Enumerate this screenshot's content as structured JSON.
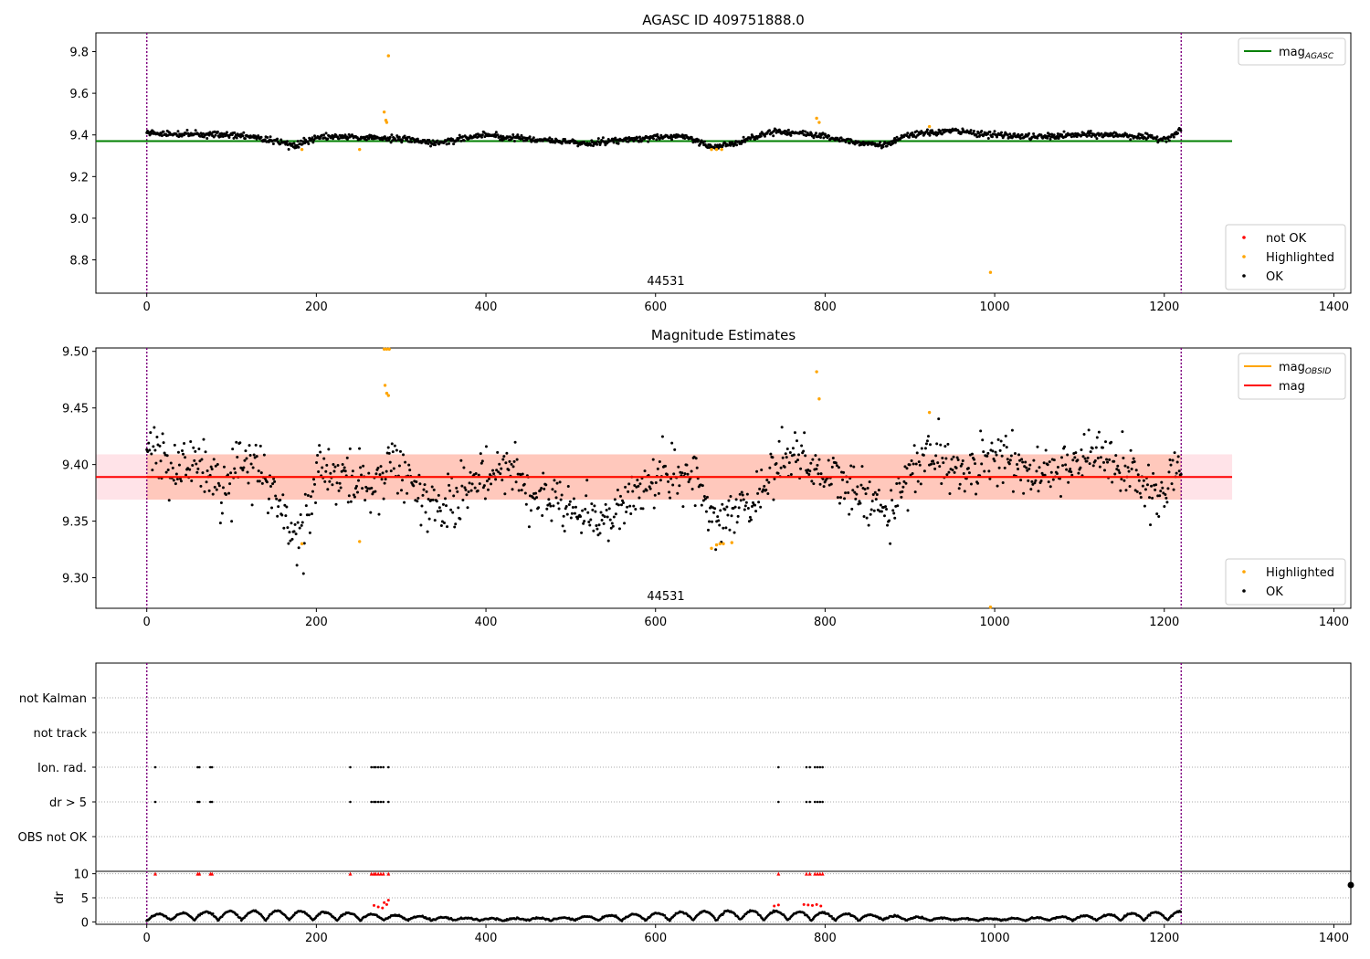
{
  "chart_data": [
    {
      "type": "scatter",
      "title": "AGASC ID 409751888.0",
      "xlim": [
        -60,
        1420
      ],
      "ylim": [
        8.64,
        9.89
      ],
      "xticks": [
        0,
        200,
        400,
        600,
        800,
        1000,
        1200,
        1400
      ],
      "yticks": [
        8.8,
        9.0,
        9.2,
        9.4,
        9.6,
        9.8
      ],
      "obsid_label": "44531",
      "obsid_boundaries": [
        0,
        1220
      ],
      "reference_line": {
        "name": "mag",
        "subscript": "AGASC",
        "value": 9.37,
        "x_range": [
          -60,
          1280
        ],
        "color": "#008000"
      },
      "legend_top": {
        "position": "upper right",
        "entries": [
          {
            "label": "mag",
            "sub": "AGASC",
            "color": "#008000",
            "marker": "line"
          }
        ]
      },
      "legend_bottom": {
        "position": "lower right",
        "entries": [
          {
            "label": "not OK",
            "color": "#ff0000",
            "marker": "dot"
          },
          {
            "label": "Highlighted",
            "color": "#ffa500",
            "marker": "dot"
          },
          {
            "label": "OK",
            "color": "#000000",
            "marker": "dot"
          }
        ]
      },
      "series": [
        {
          "name": "OK",
          "color": "#000000",
          "trend": [
            [
              0,
              9.41
            ],
            [
              60,
              9.4
            ],
            [
              100,
              9.4
            ],
            [
              130,
              9.39
            ],
            [
              150,
              9.37
            ],
            [
              175,
              9.35
            ],
            [
              200,
              9.39
            ],
            [
              250,
              9.39
            ],
            [
              300,
              9.38
            ],
            [
              340,
              9.36
            ],
            [
              400,
              9.4
            ],
            [
              450,
              9.38
            ],
            [
              520,
              9.36
            ],
            [
              600,
              9.39
            ],
            [
              640,
              9.39
            ],
            [
              665,
              9.34
            ],
            [
              700,
              9.37
            ],
            [
              740,
              9.42
            ],
            [
              790,
              9.4
            ],
            [
              830,
              9.37
            ],
            [
              870,
              9.35
            ],
            [
              900,
              9.4
            ],
            [
              950,
              9.42
            ],
            [
              1000,
              9.4
            ],
            [
              1050,
              9.39
            ],
            [
              1100,
              9.4
            ],
            [
              1150,
              9.4
            ],
            [
              1200,
              9.38
            ],
            [
              1220,
              9.42
            ]
          ],
          "scatter": 0.012
        },
        {
          "name": "Highlighted",
          "color": "#ffa500",
          "points": [
            [
              183,
              9.33
            ],
            [
              251,
              9.33
            ],
            [
              280,
              9.51
            ],
            [
              282,
              9.47
            ],
            [
              283,
              9.46
            ],
            [
              285,
              9.78
            ],
            [
              666,
              9.33
            ],
            [
              672,
              9.33
            ],
            [
              678,
              9.33
            ],
            [
              790,
              9.48
            ],
            [
              793,
              9.46
            ],
            [
              923,
              9.44
            ],
            [
              995,
              8.74
            ]
          ]
        }
      ]
    },
    {
      "type": "scatter",
      "title": "Magnitude Estimates",
      "xlim": [
        -60,
        1420
      ],
      "ylim": [
        9.273,
        9.503
      ],
      "xticks": [
        0,
        200,
        400,
        600,
        800,
        1000,
        1200,
        1400
      ],
      "yticks": [
        9.3,
        9.35,
        9.4,
        9.45,
        9.5
      ],
      "obsid_label": "44531",
      "obsid_boundaries": [
        0,
        1220
      ],
      "mag_line": {
        "name": "mag",
        "value": 9.389,
        "band": [
          9.369,
          9.409
        ],
        "color": "#ff0000"
      },
      "mag_obsid": {
        "name": "mag",
        "subscript": "OBSID",
        "value": 9.389,
        "band": [
          9.369,
          9.409
        ],
        "x_range": [
          0,
          1220
        ],
        "color": "#ffa500"
      },
      "legend_top": {
        "position": "upper right",
        "entries": [
          {
            "label": "mag",
            "sub": "OBSID",
            "color": "#ffa500",
            "marker": "line"
          },
          {
            "label": "mag",
            "sub": "",
            "color": "#ff0000",
            "marker": "line"
          }
        ]
      },
      "legend_bottom": {
        "position": "lower right",
        "entries": [
          {
            "label": "Highlighted",
            "color": "#ffa500",
            "marker": "dot"
          },
          {
            "label": "OK",
            "color": "#000000",
            "marker": "dot"
          }
        ]
      },
      "series": [
        {
          "name": "OK",
          "color": "#000000",
          "trend": [
            [
              0,
              9.41
            ],
            [
              30,
              9.4
            ],
            [
              60,
              9.4
            ],
            [
              90,
              9.38
            ],
            [
              110,
              9.4
            ],
            [
              130,
              9.4
            ],
            [
              150,
              9.37
            ],
            [
              170,
              9.34
            ],
            [
              185,
              9.34
            ],
            [
              200,
              9.39
            ],
            [
              230,
              9.39
            ],
            [
              260,
              9.38
            ],
            [
              290,
              9.4
            ],
            [
              320,
              9.38
            ],
            [
              340,
              9.36
            ],
            [
              360,
              9.36
            ],
            [
              390,
              9.39
            ],
            [
              420,
              9.4
            ],
            [
              450,
              9.38
            ],
            [
              480,
              9.37
            ],
            [
              510,
              9.36
            ],
            [
              540,
              9.35
            ],
            [
              570,
              9.37
            ],
            [
              600,
              9.39
            ],
            [
              640,
              9.39
            ],
            [
              660,
              9.37
            ],
            [
              670,
              9.34
            ],
            [
              690,
              9.36
            ],
            [
              720,
              9.37
            ],
            [
              740,
              9.4
            ],
            [
              760,
              9.41
            ],
            [
              790,
              9.4
            ],
            [
              820,
              9.38
            ],
            [
              850,
              9.37
            ],
            [
              875,
              9.35
            ],
            [
              900,
              9.4
            ],
            [
              930,
              9.41
            ],
            [
              960,
              9.39
            ],
            [
              1000,
              9.41
            ],
            [
              1040,
              9.39
            ],
            [
              1080,
              9.4
            ],
            [
              1120,
              9.41
            ],
            [
              1160,
              9.39
            ],
            [
              1200,
              9.37
            ],
            [
              1220,
              9.41
            ]
          ],
          "scatter": 0.012
        },
        {
          "name": "Highlighted",
          "color": "#ffa500",
          "points": [
            [
              183,
              9.33
            ],
            [
              251,
              9.332
            ],
            [
              280,
              9.502
            ],
            [
              283,
              9.502
            ],
            [
              286,
              9.502
            ],
            [
              281,
              9.47
            ],
            [
              283,
              9.463
            ],
            [
              285,
              9.461
            ],
            [
              666,
              9.326
            ],
            [
              672,
              9.329
            ],
            [
              676,
              9.33
            ],
            [
              680,
              9.33
            ],
            [
              690,
              9.331
            ],
            [
              790,
              9.482
            ],
            [
              793,
              9.458
            ],
            [
              923,
              9.446
            ],
            [
              995,
              9.274
            ]
          ]
        }
      ]
    },
    {
      "type": "scatter",
      "title": "",
      "xlim": [
        -60,
        1420
      ],
      "categories": [
        "not Kalman",
        "not track",
        "Ion. rad.",
        "dr > 5",
        "OBS not OK"
      ],
      "xticks": [
        0,
        200,
        400,
        600,
        800,
        1000,
        1200,
        1400
      ],
      "obsid_boundaries": [
        0,
        1220
      ],
      "flags": {
        "Ion. rad.": [
          10,
          60,
          62,
          75,
          77,
          240,
          265,
          268,
          270,
          273,
          276,
          279,
          285,
          745,
          778,
          782,
          788,
          791,
          794,
          797
        ],
        "dr > 5": [
          10,
          60,
          62,
          75,
          77,
          240,
          265,
          268,
          270,
          273,
          276,
          279,
          285,
          745,
          778,
          782,
          788,
          791,
          794,
          797
        ]
      }
    },
    {
      "type": "scatter",
      "ylabel": "dr",
      "xlim": [
        -60,
        1420
      ],
      "ylim": [
        -0.5,
        10.5
      ],
      "yticks": [
        0,
        5,
        10
      ],
      "xticks": [
        0,
        200,
        400,
        600,
        800,
        1000,
        1200,
        1400
      ],
      "obsid_boundaries": [
        0,
        1220
      ],
      "series": [
        {
          "name": "OK",
          "color": "#000000",
          "profile": "oscillating",
          "range": [
            0.3,
            2.6
          ],
          "x_range": [
            0,
            1220
          ]
        },
        {
          "name": "not OK",
          "color": "#ff0000",
          "clipped_at": 10,
          "clipped_x": [
            10,
            60,
            62,
            75,
            77,
            240,
            265,
            268,
            270,
            273,
            276,
            279,
            285,
            745,
            778,
            782,
            788,
            791,
            794,
            797
          ],
          "points": [
            [
              268,
              3.4
            ],
            [
              273,
              3.1
            ],
            [
              278,
              2.9
            ],
            [
              280,
              4.0
            ],
            [
              283,
              3.6
            ],
            [
              285,
              4.5
            ],
            [
              740,
              3.3
            ],
            [
              745,
              3.5
            ],
            [
              775,
              3.6
            ],
            [
              780,
              3.5
            ],
            [
              785,
              3.4
            ],
            [
              790,
              3.6
            ],
            [
              795,
              3.3
            ]
          ]
        }
      ]
    }
  ]
}
